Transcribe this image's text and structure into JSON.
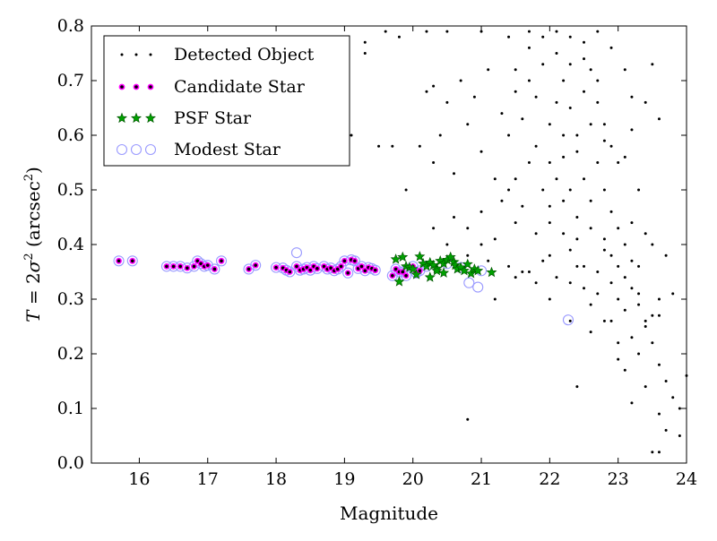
{
  "chart_data": {
    "type": "scatter",
    "xlabel": "Magnitude",
    "ylabel": "T = 2σ² (arcsec²)",
    "xlim": [
      15.3,
      24
    ],
    "ylim": [
      0,
      0.8
    ],
    "x_ticks": [
      16,
      17,
      18,
      19,
      20,
      21,
      22,
      23,
      24
    ],
    "y_ticks": [
      0.0,
      0.1,
      0.2,
      0.3,
      0.4,
      0.5,
      0.6,
      0.7,
      0.8
    ],
    "x_tick_labels": [
      "16",
      "17",
      "18",
      "19",
      "20",
      "21",
      "22",
      "23",
      "24"
    ],
    "y_tick_labels": [
      "0.0",
      "0.1",
      "0.2",
      "0.3",
      "0.4",
      "0.5",
      "0.6",
      "0.7",
      "0.8"
    ],
    "grid": false,
    "legend_position": "top-left",
    "series": [
      {
        "name": "Detected Object",
        "marker": "dot",
        "color": "#000000",
        "points": [
          [
            19.3,
            0.75
          ],
          [
            19.3,
            0.77
          ],
          [
            19.6,
            0.79
          ],
          [
            19.8,
            0.78
          ],
          [
            20.2,
            0.79
          ],
          [
            20.5,
            0.79
          ],
          [
            20.2,
            0.68
          ],
          [
            20.3,
            0.69
          ],
          [
            20.5,
            0.66
          ],
          [
            20.1,
            0.58
          ],
          [
            19.9,
            0.5
          ],
          [
            20.3,
            0.55
          ],
          [
            20.4,
            0.6
          ],
          [
            20.6,
            0.53
          ],
          [
            20.8,
            0.62
          ],
          [
            19.0,
            0.63
          ],
          [
            19.1,
            0.6
          ],
          [
            19.5,
            0.58
          ],
          [
            19.7,
            0.58
          ],
          [
            20.3,
            0.43
          ],
          [
            20.6,
            0.45
          ],
          [
            20.8,
            0.43
          ],
          [
            21.0,
            0.46
          ],
          [
            20.5,
            0.4
          ],
          [
            20.8,
            0.38
          ],
          [
            21.0,
            0.4
          ],
          [
            21.1,
            0.37
          ],
          [
            21.2,
            0.41
          ],
          [
            21.4,
            0.36
          ],
          [
            21.5,
            0.34
          ],
          [
            21.6,
            0.35
          ],
          [
            21.8,
            0.33
          ],
          [
            22.0,
            0.3
          ],
          [
            21.3,
            0.48
          ],
          [
            21.5,
            0.52
          ],
          [
            21.7,
            0.55
          ],
          [
            21.9,
            0.5
          ],
          [
            22.0,
            0.47
          ],
          [
            22.1,
            0.52
          ],
          [
            22.2,
            0.56
          ],
          [
            22.3,
            0.5
          ],
          [
            22.4,
            0.45
          ],
          [
            22.5,
            0.52
          ],
          [
            22.6,
            0.48
          ],
          [
            22.7,
            0.55
          ],
          [
            22.8,
            0.5
          ],
          [
            22.9,
            0.46
          ],
          [
            23.0,
            0.43
          ],
          [
            23.1,
            0.4
          ],
          [
            23.2,
            0.37
          ],
          [
            21.4,
            0.6
          ],
          [
            21.6,
            0.63
          ],
          [
            21.8,
            0.67
          ],
          [
            22.0,
            0.62
          ],
          [
            22.1,
            0.66
          ],
          [
            22.2,
            0.7
          ],
          [
            22.3,
            0.65
          ],
          [
            22.4,
            0.6
          ],
          [
            22.5,
            0.68
          ],
          [
            22.6,
            0.72
          ],
          [
            22.7,
            0.66
          ],
          [
            22.8,
            0.62
          ],
          [
            22.9,
            0.58
          ],
          [
            23.0,
            0.55
          ],
          [
            21.5,
            0.72
          ],
          [
            21.7,
            0.76
          ],
          [
            21.9,
            0.78
          ],
          [
            22.1,
            0.79
          ],
          [
            22.3,
            0.78
          ],
          [
            22.5,
            0.77
          ],
          [
            22.7,
            0.79
          ],
          [
            22.9,
            0.76
          ],
          [
            23.1,
            0.72
          ],
          [
            23.2,
            0.67
          ],
          [
            21.2,
            0.3
          ],
          [
            21.5,
            0.44
          ],
          [
            21.8,
            0.42
          ],
          [
            22.0,
            0.38
          ],
          [
            22.2,
            0.42
          ],
          [
            22.3,
            0.39
          ],
          [
            22.4,
            0.36
          ],
          [
            22.5,
            0.32
          ],
          [
            22.6,
            0.29
          ],
          [
            22.7,
            0.35
          ],
          [
            22.8,
            0.39
          ],
          [
            22.9,
            0.33
          ],
          [
            23.0,
            0.3
          ],
          [
            23.1,
            0.28
          ],
          [
            23.2,
            0.32
          ],
          [
            23.3,
            0.29
          ],
          [
            23.4,
            0.25
          ],
          [
            23.5,
            0.27
          ],
          [
            23.5,
            0.22
          ],
          [
            23.6,
            0.18
          ],
          [
            23.7,
            0.15
          ],
          [
            23.8,
            0.12
          ],
          [
            23.9,
            0.1
          ],
          [
            24.0,
            0.16
          ],
          [
            23.3,
            0.2
          ],
          [
            23.4,
            0.14
          ],
          [
            23.6,
            0.09
          ],
          [
            23.7,
            0.06
          ],
          [
            23.5,
            0.02
          ],
          [
            23.6,
            0.02
          ],
          [
            23.9,
            0.05
          ],
          [
            23.2,
            0.11
          ],
          [
            23.1,
            0.17
          ],
          [
            23.0,
            0.22
          ],
          [
            22.9,
            0.26
          ],
          [
            23.3,
            0.36
          ],
          [
            23.5,
            0.4
          ],
          [
            23.7,
            0.38
          ],
          [
            23.8,
            0.31
          ],
          [
            23.6,
            0.3
          ],
          [
            22.4,
            0.14
          ],
          [
            22.3,
            0.26
          ],
          [
            20.8,
            0.08
          ],
          [
            23.3,
            0.5
          ],
          [
            23.1,
            0.56
          ],
          [
            23.2,
            0.61
          ],
          [
            23.4,
            0.66
          ],
          [
            23.6,
            0.63
          ],
          [
            23.5,
            0.73
          ],
          [
            21.0,
            0.57
          ],
          [
            21.2,
            0.52
          ],
          [
            21.4,
            0.5
          ],
          [
            21.6,
            0.47
          ],
          [
            21.8,
            0.58
          ],
          [
            22.0,
            0.55
          ],
          [
            22.2,
            0.6
          ],
          [
            22.4,
            0.57
          ],
          [
            22.6,
            0.62
          ],
          [
            22.8,
            0.59
          ],
          [
            21.3,
            0.64
          ],
          [
            21.5,
            0.68
          ],
          [
            21.7,
            0.7
          ],
          [
            21.9,
            0.73
          ],
          [
            22.1,
            0.75
          ],
          [
            22.3,
            0.73
          ],
          [
            22.5,
            0.74
          ],
          [
            22.7,
            0.7
          ],
          [
            21.1,
            0.72
          ],
          [
            20.9,
            0.67
          ],
          [
            20.7,
            0.7
          ],
          [
            21.0,
            0.79
          ],
          [
            21.4,
            0.78
          ],
          [
            21.7,
            0.79
          ],
          [
            22.0,
            0.44
          ],
          [
            22.2,
            0.48
          ],
          [
            22.4,
            0.41
          ],
          [
            22.6,
            0.43
          ],
          [
            22.8,
            0.41
          ],
          [
            23.0,
            0.36
          ],
          [
            23.2,
            0.44
          ],
          [
            23.4,
            0.42
          ],
          [
            21.9,
            0.37
          ],
          [
            21.7,
            0.35
          ],
          [
            22.1,
            0.34
          ],
          [
            22.3,
            0.33
          ],
          [
            22.5,
            0.36
          ],
          [
            22.7,
            0.31
          ],
          [
            22.9,
            0.38
          ],
          [
            23.1,
            0.34
          ],
          [
            23.3,
            0.31
          ],
          [
            22.6,
            0.24
          ],
          [
            22.8,
            0.26
          ],
          [
            23.0,
            0.19
          ],
          [
            23.2,
            0.23
          ],
          [
            23.4,
            0.26
          ],
          [
            23.6,
            0.27
          ]
        ]
      },
      {
        "name": "Candidate Star",
        "marker": "small-circle",
        "color": "#ff00ff",
        "points": [
          [
            15.7,
            0.37
          ],
          [
            15.9,
            0.37
          ],
          [
            16.4,
            0.36
          ],
          [
            16.5,
            0.36
          ],
          [
            16.6,
            0.36
          ],
          [
            16.7,
            0.357
          ],
          [
            16.8,
            0.36
          ],
          [
            16.85,
            0.37
          ],
          [
            16.9,
            0.365
          ],
          [
            16.95,
            0.36
          ],
          [
            17.0,
            0.362
          ],
          [
            17.1,
            0.355
          ],
          [
            17.2,
            0.37
          ],
          [
            17.6,
            0.355
          ],
          [
            17.7,
            0.362
          ],
          [
            18.0,
            0.358
          ],
          [
            18.1,
            0.357
          ],
          [
            18.15,
            0.353
          ],
          [
            18.2,
            0.35
          ],
          [
            18.3,
            0.36
          ],
          [
            18.35,
            0.353
          ],
          [
            18.4,
            0.355
          ],
          [
            18.45,
            0.358
          ],
          [
            18.5,
            0.353
          ],
          [
            18.55,
            0.36
          ],
          [
            18.6,
            0.356
          ],
          [
            18.7,
            0.36
          ],
          [
            18.75,
            0.355
          ],
          [
            18.8,
            0.357
          ],
          [
            18.85,
            0.352
          ],
          [
            18.9,
            0.355
          ],
          [
            18.95,
            0.36
          ],
          [
            19.0,
            0.37
          ],
          [
            19.05,
            0.348
          ],
          [
            19.1,
            0.372
          ],
          [
            19.15,
            0.37
          ],
          [
            19.2,
            0.356
          ],
          [
            19.25,
            0.36
          ],
          [
            19.3,
            0.352
          ],
          [
            19.35,
            0.358
          ],
          [
            19.4,
            0.356
          ],
          [
            19.45,
            0.353
          ],
          [
            19.7,
            0.343
          ],
          [
            19.75,
            0.355
          ],
          [
            19.8,
            0.35
          ],
          [
            19.85,
            0.35
          ],
          [
            19.9,
            0.343
          ],
          [
            20.0,
            0.36
          ],
          [
            20.05,
            0.348
          ],
          [
            20.1,
            0.352
          ]
        ]
      },
      {
        "name": "PSF Star",
        "marker": "star",
        "color": "#00a000",
        "points": [
          [
            19.75,
            0.373
          ],
          [
            19.85,
            0.377
          ],
          [
            19.8,
            0.332
          ],
          [
            19.9,
            0.36
          ],
          [
            19.95,
            0.358
          ],
          [
            20.0,
            0.355
          ],
          [
            20.05,
            0.345
          ],
          [
            20.1,
            0.378
          ],
          [
            20.15,
            0.365
          ],
          [
            20.2,
            0.36
          ],
          [
            20.25,
            0.367
          ],
          [
            20.3,
            0.362
          ],
          [
            20.35,
            0.356
          ],
          [
            20.4,
            0.37
          ],
          [
            20.45,
            0.365
          ],
          [
            20.5,
            0.372
          ],
          [
            20.55,
            0.377
          ],
          [
            20.6,
            0.368
          ],
          [
            20.62,
            0.362
          ],
          [
            20.65,
            0.355
          ],
          [
            20.7,
            0.358
          ],
          [
            20.75,
            0.352
          ],
          [
            20.8,
            0.364
          ],
          [
            20.85,
            0.347
          ],
          [
            20.9,
            0.355
          ],
          [
            20.95,
            0.352
          ],
          [
            21.15,
            0.349
          ],
          [
            20.25,
            0.34
          ],
          [
            20.45,
            0.348
          ],
          [
            20.35,
            0.352
          ]
        ]
      },
      {
        "name": "Modest Star",
        "marker": "open-circle",
        "color": "#9a9aff",
        "points": [
          [
            15.7,
            0.37
          ],
          [
            15.9,
            0.37
          ],
          [
            16.4,
            0.36
          ],
          [
            16.5,
            0.36
          ],
          [
            16.6,
            0.36
          ],
          [
            16.7,
            0.357
          ],
          [
            16.8,
            0.36
          ],
          [
            16.85,
            0.37
          ],
          [
            16.9,
            0.365
          ],
          [
            16.95,
            0.36
          ],
          [
            17.0,
            0.362
          ],
          [
            17.1,
            0.355
          ],
          [
            17.2,
            0.37
          ],
          [
            17.6,
            0.355
          ],
          [
            17.7,
            0.362
          ],
          [
            18.0,
            0.358
          ],
          [
            18.1,
            0.357
          ],
          [
            18.15,
            0.353
          ],
          [
            18.2,
            0.35
          ],
          [
            18.3,
            0.36
          ],
          [
            18.35,
            0.353
          ],
          [
            18.4,
            0.355
          ],
          [
            18.45,
            0.358
          ],
          [
            18.5,
            0.353
          ],
          [
            18.55,
            0.36
          ],
          [
            18.6,
            0.356
          ],
          [
            18.7,
            0.36
          ],
          [
            18.75,
            0.355
          ],
          [
            18.8,
            0.357
          ],
          [
            18.85,
            0.352
          ],
          [
            18.9,
            0.355
          ],
          [
            18.95,
            0.36
          ],
          [
            19.0,
            0.37
          ],
          [
            19.05,
            0.348
          ],
          [
            19.1,
            0.372
          ],
          [
            19.15,
            0.37
          ],
          [
            19.2,
            0.356
          ],
          [
            19.25,
            0.36
          ],
          [
            19.3,
            0.352
          ],
          [
            19.35,
            0.358
          ],
          [
            19.4,
            0.356
          ],
          [
            19.45,
            0.353
          ],
          [
            19.7,
            0.343
          ],
          [
            19.75,
            0.355
          ],
          [
            19.8,
            0.35
          ],
          [
            19.85,
            0.35
          ],
          [
            19.9,
            0.343
          ],
          [
            20.0,
            0.36
          ],
          [
            20.05,
            0.348
          ],
          [
            20.1,
            0.352
          ],
          [
            18.3,
            0.385
          ],
          [
            20.82,
            0.33
          ],
          [
            20.95,
            0.322
          ],
          [
            22.27,
            0.262
          ],
          [
            20.2,
            0.36
          ],
          [
            20.5,
            0.365
          ],
          [
            20.7,
            0.358
          ],
          [
            21.0,
            0.352
          ]
        ]
      }
    ]
  }
}
